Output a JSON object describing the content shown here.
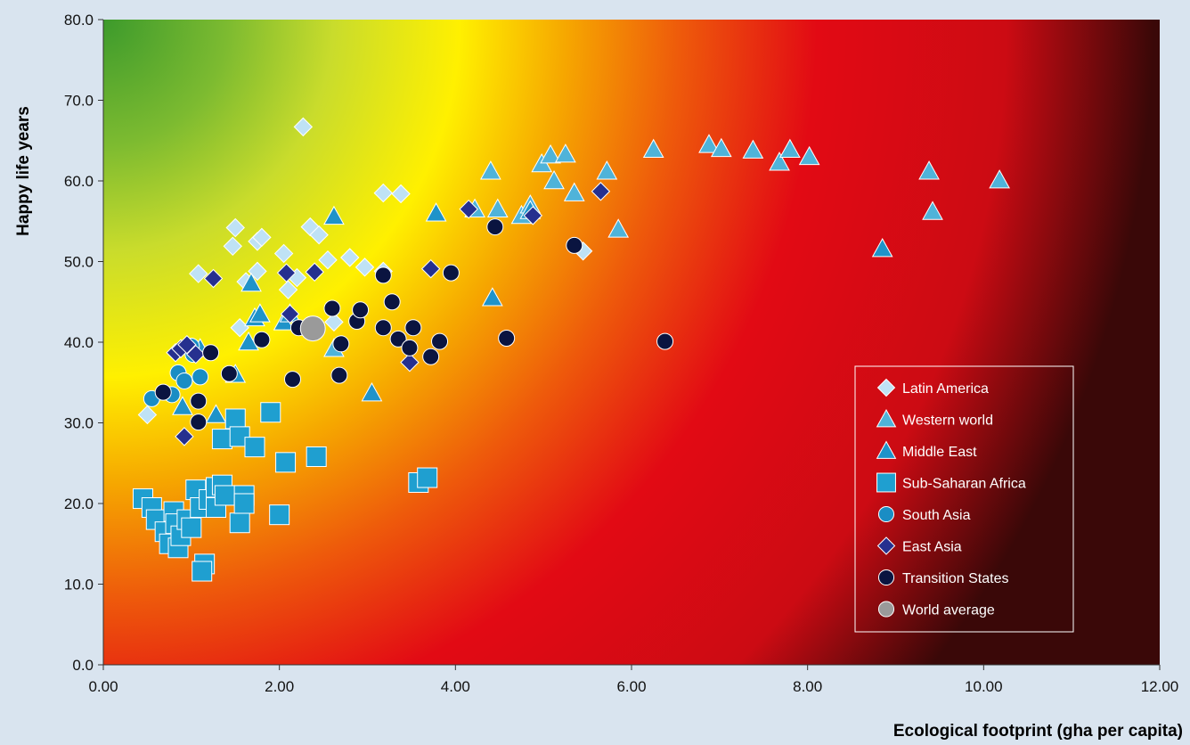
{
  "chart_data": {
    "type": "scatter",
    "xlabel": "Ecological footprint (gha per capita)",
    "ylabel": "Happy life years",
    "xlim": [
      0,
      12
    ],
    "ylim": [
      0,
      80
    ],
    "x_ticks": [
      "0.00",
      "2.00",
      "4.00",
      "6.00",
      "8.00",
      "10.00",
      "12.00"
    ],
    "y_ticks": [
      "0.0",
      "10.0",
      "20.0",
      "30.0",
      "40.0",
      "50.0",
      "60.0",
      "70.0",
      "80.0"
    ],
    "grid": false,
    "legend_position": "bottom-right",
    "series": [
      {
        "name": "Latin America",
        "marker": "diamond",
        "color": "#bfe2f5",
        "points": [
          [
            0.5,
            31
          ],
          [
            1.08,
            48.5
          ],
          [
            1.5,
            54.2
          ],
          [
            1.47,
            51.9
          ],
          [
            1.75,
            52.5
          ],
          [
            1.8,
            53
          ],
          [
            1.75,
            48.8
          ],
          [
            1.55,
            41.8
          ],
          [
            1.62,
            47.5
          ],
          [
            2.05,
            51
          ],
          [
            2.1,
            46.5
          ],
          [
            2.2,
            48
          ],
          [
            2.27,
            66.7
          ],
          [
            2.35,
            54.3
          ],
          [
            2.45,
            53.3
          ],
          [
            2.55,
            50.2
          ],
          [
            2.62,
            42.5
          ],
          [
            2.8,
            50.5
          ],
          [
            2.97,
            49.3
          ],
          [
            3.18,
            48.8
          ],
          [
            3.18,
            58.5
          ],
          [
            3.38,
            58.4
          ],
          [
            5.45,
            51.3
          ]
        ]
      },
      {
        "name": "Western world",
        "marker": "triangle",
        "color": "#4fb3d9",
        "points": [
          [
            4.4,
            61.2
          ],
          [
            4.98,
            62.1
          ],
          [
            5.08,
            63.2
          ],
          [
            5.12,
            60
          ],
          [
            5.25,
            63.3
          ],
          [
            5.35,
            58.5
          ],
          [
            5.72,
            61.2
          ],
          [
            5.85,
            54
          ],
          [
            6.25,
            63.9
          ],
          [
            6.88,
            64.5
          ],
          [
            7.02,
            64
          ],
          [
            7.38,
            63.8
          ],
          [
            7.68,
            62.3
          ],
          [
            7.8,
            63.9
          ],
          [
            8.02,
            63
          ],
          [
            9.38,
            61.2
          ],
          [
            9.42,
            56.2
          ],
          [
            10.18,
            60.1
          ],
          [
            4.22,
            56.5
          ],
          [
            4.48,
            56.5
          ],
          [
            4.75,
            55.7
          ],
          [
            4.85,
            57
          ],
          [
            2.62,
            39.2
          ]
        ]
      },
      {
        "name": "Middle East",
        "marker": "triangle",
        "color": "#1f93c9",
        "points": [
          [
            0.9,
            32
          ],
          [
            1.1,
            39.2
          ],
          [
            1.28,
            31
          ],
          [
            1.5,
            36
          ],
          [
            1.65,
            40
          ],
          [
            1.68,
            47.3
          ],
          [
            1.72,
            43
          ],
          [
            1.78,
            43.5
          ],
          [
            2.05,
            42.5
          ],
          [
            2.12,
            43.5
          ],
          [
            2.62,
            55.6
          ],
          [
            3.05,
            33.7
          ],
          [
            3.78,
            56
          ],
          [
            4.42,
            45.5
          ],
          [
            4.85,
            56.3
          ],
          [
            8.85,
            51.6
          ]
        ]
      },
      {
        "name": "Sub-Saharan Africa",
        "marker": "square",
        "color": "#1f9fd0",
        "points": [
          [
            0.45,
            20.6
          ],
          [
            0.55,
            19.5
          ],
          [
            0.6,
            18
          ],
          [
            0.7,
            16.5
          ],
          [
            0.75,
            15
          ],
          [
            0.8,
            19
          ],
          [
            0.82,
            17.5
          ],
          [
            0.85,
            14.5
          ],
          [
            0.88,
            16
          ],
          [
            0.95,
            18
          ],
          [
            1,
            17
          ],
          [
            1.05,
            21.7
          ],
          [
            1.1,
            19.5
          ],
          [
            1.15,
            12.5
          ],
          [
            1.12,
            11.6
          ],
          [
            1.2,
            20.5
          ],
          [
            1.28,
            22
          ],
          [
            1.28,
            19.5
          ],
          [
            1.35,
            22.3
          ],
          [
            1.38,
            21
          ],
          [
            1.35,
            28
          ],
          [
            1.5,
            30.5
          ],
          [
            1.55,
            28.3
          ],
          [
            1.55,
            17.6
          ],
          [
            1.6,
            21
          ],
          [
            1.6,
            20
          ],
          [
            1.72,
            27
          ],
          [
            1.9,
            31.3
          ],
          [
            2.0,
            18.6
          ],
          [
            2.07,
            25.1
          ],
          [
            2.42,
            25.8
          ],
          [
            3.58,
            22.6
          ],
          [
            3.68,
            23.2
          ]
        ]
      },
      {
        "name": "South Asia",
        "marker": "circle",
        "color": "#1a8dc4",
        "points": [
          [
            0.55,
            33
          ],
          [
            0.78,
            33.5
          ],
          [
            0.85,
            36.2
          ],
          [
            0.92,
            35.2
          ],
          [
            1.0,
            39.5
          ],
          [
            1.02,
            38.5
          ],
          [
            1.1,
            35.7
          ]
        ]
      },
      {
        "name": "East Asia",
        "marker": "diamond",
        "color": "#26308f",
        "points": [
          [
            0.82,
            38.7
          ],
          [
            0.88,
            39.2
          ],
          [
            0.92,
            28.3
          ],
          [
            0.95,
            39.7
          ],
          [
            1.05,
            38.5
          ],
          [
            1.25,
            47.9
          ],
          [
            2.08,
            48.6
          ],
          [
            2.12,
            43.5
          ],
          [
            2.4,
            48.7
          ],
          [
            3.48,
            37.5
          ],
          [
            3.72,
            49.1
          ],
          [
            4.15,
            56.5
          ],
          [
            4.88,
            55.7
          ],
          [
            5.65,
            58.7
          ]
        ]
      },
      {
        "name": "Transition States",
        "marker": "circle",
        "color": "#0a1440",
        "points": [
          [
            0.68,
            33.8
          ],
          [
            1.08,
            30.1
          ],
          [
            1.08,
            32.7
          ],
          [
            1.22,
            38.7
          ],
          [
            1.43,
            36.1
          ],
          [
            1.8,
            40.3
          ],
          [
            2.15,
            35.4
          ],
          [
            2.22,
            41.8
          ],
          [
            2.6,
            44.2
          ],
          [
            2.68,
            35.9
          ],
          [
            2.7,
            39.8
          ],
          [
            2.88,
            42.6
          ],
          [
            2.92,
            44
          ],
          [
            3.18,
            48.3
          ],
          [
            3.18,
            41.8
          ],
          [
            3.28,
            45
          ],
          [
            3.35,
            40.4
          ],
          [
            3.48,
            39.3
          ],
          [
            3.52,
            41.8
          ],
          [
            3.72,
            38.2
          ],
          [
            3.82,
            40.1
          ],
          [
            3.95,
            48.6
          ],
          [
            4.45,
            54.3
          ],
          [
            4.58,
            40.5
          ],
          [
            5.35,
            52
          ],
          [
            6.38,
            40.1
          ]
        ]
      },
      {
        "name": "World average",
        "marker": "circle",
        "color": "#9a9a9a",
        "points": [
          [
            2.38,
            41.7
          ]
        ]
      }
    ]
  }
}
